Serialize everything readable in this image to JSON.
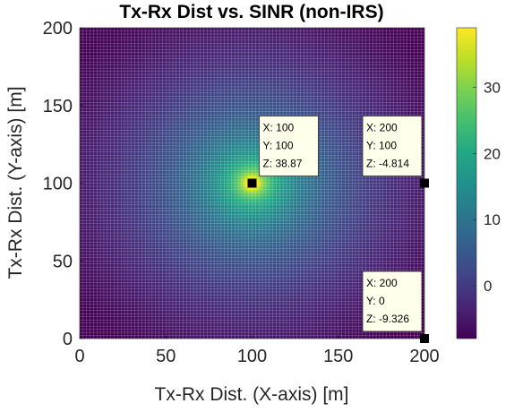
{
  "chart_data": {
    "type": "heatmap",
    "title": "Tx-Rx Dist vs. SINR (non-IRS)",
    "xlabel": "Tx-Rx Dist. (X-axis) [m]",
    "ylabel": "Tx-Rx Dist. (Y-axis) [m]",
    "xlim": [
      0,
      200
    ],
    "ylim": [
      0,
      200
    ],
    "xticks": [
      "0",
      "50",
      "100",
      "150",
      "200"
    ],
    "yticks": [
      "0",
      "50",
      "100",
      "150",
      "200"
    ],
    "colorbar": {
      "colormap": "viridis",
      "clim": [
        -8,
        39
      ],
      "ticks": [
        "0",
        "10",
        "20",
        "30"
      ]
    },
    "grid": true,
    "source_point": {
      "x": 100,
      "y": 100,
      "z": 38.87
    },
    "datatips": [
      {
        "x_text": "X: 100",
        "y_text": "Y: 100",
        "z_text": "Z: 38.87",
        "x": 100,
        "y": 100,
        "z": 38.87
      },
      {
        "x_text": "X: 200",
        "y_text": "Y: 100",
        "z_text": "Z: -4.814",
        "x": 200,
        "y": 100,
        "z": -4.814
      },
      {
        "x_text": "X: 200",
        "y_text": "Y: 0",
        "z_text": "Z: -9.326",
        "x": 200,
        "y": 0,
        "z": -9.326
      }
    ]
  }
}
